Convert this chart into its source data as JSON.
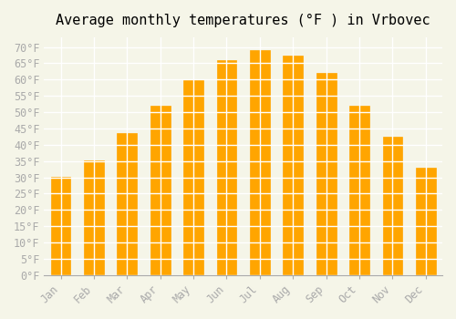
{
  "title": "Average monthly temperatures (°F ) in Vrbovec",
  "months": [
    "Jan",
    "Feb",
    "Mar",
    "Apr",
    "May",
    "Jun",
    "Jul",
    "Aug",
    "Sep",
    "Oct",
    "Nov",
    "Dec"
  ],
  "values": [
    30.2,
    35.2,
    43.5,
    52.0,
    60.0,
    66.0,
    69.0,
    67.5,
    62.0,
    52.0,
    42.5,
    33.0
  ],
  "bar_color": "#FFA500",
  "bar_edge_color": "#E69500",
  "ylim": [
    0,
    73
  ],
  "yticks": [
    0,
    5,
    10,
    15,
    20,
    25,
    30,
    35,
    40,
    45,
    50,
    55,
    60,
    65,
    70
  ],
  "ytick_labels": [
    "0°F",
    "5°F",
    "10°F",
    "15°F",
    "20°F",
    "25°F",
    "30°F",
    "35°F",
    "40°F",
    "45°F",
    "50°F",
    "55°F",
    "60°F",
    "65°F",
    "70°F"
  ],
  "bg_color": "#f5f5e8",
  "grid_color": "#ffffff",
  "title_fontsize": 11,
  "tick_fontsize": 8.5,
  "font_family": "monospace"
}
